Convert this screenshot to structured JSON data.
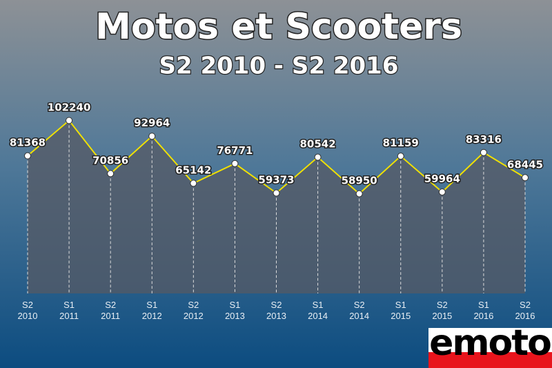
{
  "chart_data": {
    "type": "line",
    "title": "Motos et Scooters",
    "subtitle": "S2 2010 - S2 2016",
    "categories": [
      [
        "S2",
        "2010"
      ],
      [
        "S1",
        "2011"
      ],
      [
        "S2",
        "2011"
      ],
      [
        "S1",
        "2012"
      ],
      [
        "S2",
        "2012"
      ],
      [
        "S1",
        "2013"
      ],
      [
        "S2",
        "2013"
      ],
      [
        "S1",
        "2014"
      ],
      [
        "S2",
        "2014"
      ],
      [
        "S1",
        "2015"
      ],
      [
        "S2",
        "2015"
      ],
      [
        "S1",
        "2016"
      ],
      [
        "S2",
        "2016"
      ]
    ],
    "series": [
      {
        "color": "#f0e000",
        "values": [
          81368,
          102240,
          70856,
          92964,
          65142,
          76771,
          59373,
          80542,
          58950,
          81159,
          59964,
          83316,
          68445
        ]
      }
    ],
    "ylim": [
      0,
      120000
    ]
  },
  "logo": "emoto"
}
